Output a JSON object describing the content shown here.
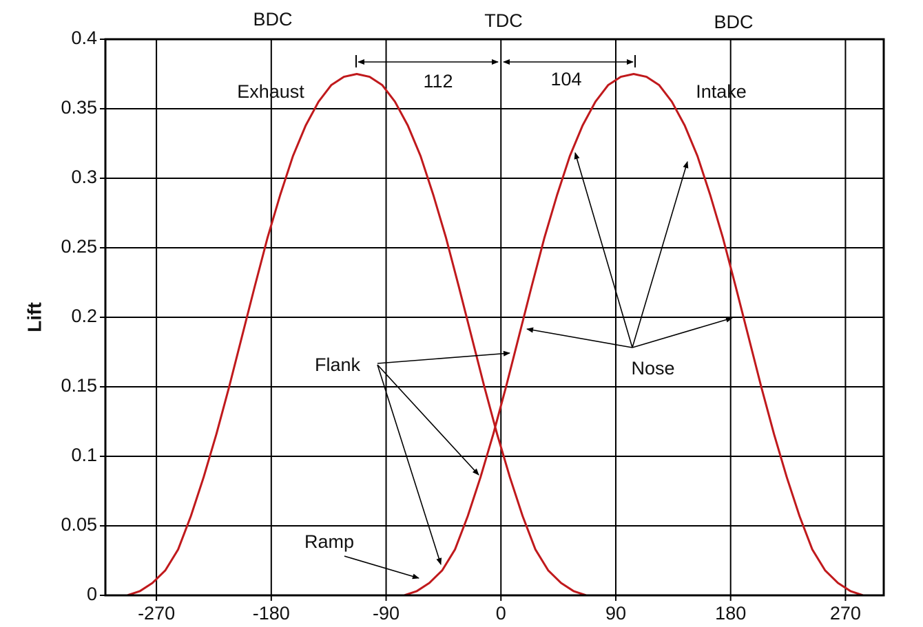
{
  "chart_data": {
    "type": "line",
    "y_label": "Lift",
    "xlim": [
      -310,
      300
    ],
    "ylim": [
      0,
      0.4
    ],
    "xticks": [
      -270,
      -180,
      -90,
      0,
      90,
      180,
      270
    ],
    "yticks": [
      0,
      0.05,
      0.1,
      0.15,
      0.2,
      0.25,
      0.3,
      0.35,
      0.4
    ],
    "grid": true,
    "annotations": [
      "BDC",
      "TDC",
      "BDC",
      "112",
      "104",
      "Flank",
      "Nose",
      "Ramp"
    ],
    "series": [
      {
        "name": "Exhaust",
        "color": "#c0191c",
        "x": [
          -293,
          -283,
          -273,
          -263,
          -253,
          -243,
          -233,
          -223,
          -213,
          -203,
          -193,
          -183,
          -173,
          -163,
          -153,
          -143,
          -133,
          -123,
          -113,
          -103,
          -93,
          -83,
          -73,
          -63,
          -53,
          -43,
          -33,
          -23,
          -13,
          -3,
          7,
          17,
          27,
          37,
          47,
          57,
          67
        ],
        "values": [
          0,
          0.003,
          0.009,
          0.018,
          0.033,
          0.057,
          0.085,
          0.116,
          0.15,
          0.186,
          0.222,
          0.257,
          0.288,
          0.316,
          0.338,
          0.355,
          0.367,
          0.373,
          0.375,
          0.373,
          0.367,
          0.355,
          0.338,
          0.316,
          0.288,
          0.257,
          0.222,
          0.186,
          0.15,
          0.116,
          0.085,
          0.057,
          0.033,
          0.018,
          0.009,
          0.003,
          0
        ]
      },
      {
        "name": "Intake",
        "color": "#c0191c",
        "x": [
          -76,
          -66,
          -56,
          -46,
          -36,
          -26,
          -16,
          -6,
          4,
          14,
          24,
          34,
          44,
          54,
          64,
          74,
          84,
          94,
          104,
          114,
          124,
          134,
          144,
          154,
          164,
          174,
          184,
          194,
          204,
          214,
          224,
          234,
          244,
          254,
          264,
          274,
          284
        ],
        "values": [
          0,
          0.003,
          0.009,
          0.018,
          0.033,
          0.057,
          0.085,
          0.116,
          0.15,
          0.186,
          0.222,
          0.257,
          0.288,
          0.316,
          0.338,
          0.355,
          0.367,
          0.373,
          0.375,
          0.373,
          0.367,
          0.355,
          0.338,
          0.316,
          0.288,
          0.257,
          0.222,
          0.186,
          0.15,
          0.116,
          0.085,
          0.057,
          0.033,
          0.018,
          0.009,
          0.003,
          0
        ]
      }
    ]
  }
}
